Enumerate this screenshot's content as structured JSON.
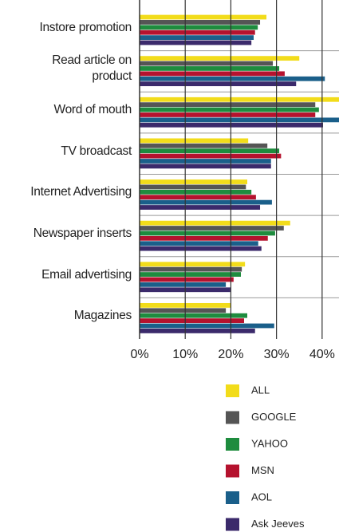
{
  "chart_data": {
    "type": "bar",
    "orientation": "horizontal",
    "categories": [
      "Instore promotion",
      "Read article on product",
      "Word of mouth",
      "TV broadcast",
      "Internet Advertising",
      "Newspaper inserts",
      "Email advertising",
      "Magazines"
    ],
    "series": [
      {
        "name": "ALL",
        "color": "#f2dc1a",
        "values": [
          27.8,
          35,
          43.7,
          23.8,
          23.6,
          33,
          23.1,
          19.9
        ]
      },
      {
        "name": "GOOGLE",
        "color": "#555555",
        "values": [
          26.4,
          29.2,
          38.5,
          28,
          23.3,
          31.6,
          22.4,
          18.9
        ]
      },
      {
        "name": "YAHOO",
        "color": "#1e8c3e",
        "values": [
          25.9,
          30.6,
          39.3,
          30.6,
          24.5,
          29.7,
          22.2,
          23.6
        ]
      },
      {
        "name": "MSN",
        "color": "#b5122e",
        "values": [
          25.3,
          31.8,
          38.5,
          31,
          25.5,
          28.1,
          20.6,
          22.9
        ]
      },
      {
        "name": "AOL",
        "color": "#1a5f8a",
        "values": [
          25,
          40.6,
          43.7,
          28.8,
          29,
          26,
          18.9,
          29.5
        ]
      },
      {
        "name": "Ask Jeeves",
        "color": "#3b2a6b",
        "values": [
          24.5,
          34.3,
          40.2,
          28.8,
          26.4,
          26.7,
          19.9,
          25.3
        ]
      }
    ],
    "xlim": [
      0,
      43.7
    ],
    "xticks": [
      {
        "value": 0,
        "label": "0%"
      },
      {
        "value": 10,
        "label": "10%"
      },
      {
        "value": 20,
        "label": "20%"
      },
      {
        "value": 30,
        "label": "30%"
      },
      {
        "value": 40,
        "label": "40%"
      }
    ],
    "grid": true
  }
}
